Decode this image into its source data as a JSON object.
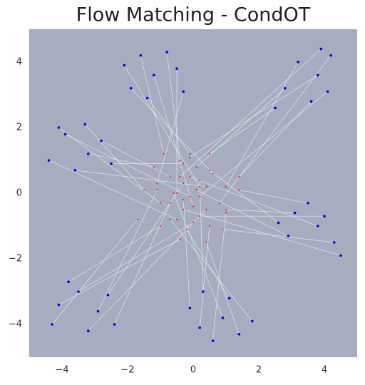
{
  "chart_data": {
    "type": "flow",
    "title": "Flow Matching - CondOT",
    "xlim": [
      -5,
      5
    ],
    "ylim": [
      -5,
      5
    ],
    "xticks": [
      {
        "value": -4,
        "label": "−4"
      },
      {
        "value": -2,
        "label": "−2"
      },
      0,
      2,
      4
    ],
    "yticks": [
      {
        "value": -4,
        "label": "−4"
      },
      {
        "value": -2,
        "label": "−2"
      },
      0,
      2,
      4
    ],
    "background": "#a5adbf",
    "trajectory_color": "#f4f4f8",
    "series": [
      {
        "color": "#ff0000",
        "x": [
          0.2,
          -0.9,
          0.0,
          -0.4,
          0.6,
          -0.5,
          -0.1,
          -1.1,
          1.0,
          -0.1,
          0.8,
          0.1,
          1.4,
          0.2,
          0.5,
          -0.4,
          1.0,
          -0.1,
          0.9,
          0.1,
          1.4,
          0.2,
          0.5,
          -0.3,
          0.5,
          -0.6,
          0.4,
          -0.3,
          1.0,
          -0.2,
          0.2,
          -0.7,
          0.0,
          -1.1,
          -0.4,
          -0.7,
          0.4,
          -1.0,
          -0.3,
          -1.7,
          -0.1,
          -1.2,
          -0.5,
          -0.7,
          0.4,
          -1.0,
          -0.3,
          -1.5
        ],
        "y": [
          0.2,
          1.2,
          -0.4,
          1.0,
          0.6,
          0.0,
          1.2,
          0.3,
          0.2,
          1.1,
          -0.3,
          0.8,
          0.5,
          -0.1,
          1.2,
          0.5,
          -0.5,
          0.5,
          -1.1,
          0.1,
          0.1,
          -0.7,
          0.7,
          -0.5,
          -1.0,
          0.0,
          -1.5,
          -0.2,
          -0.6,
          -1.1,
          0.4,
          -0.8,
          -0.9,
          0.1,
          -1.4,
          -0.3,
          -0.5,
          -1.0,
          0.3,
          -0.8,
          -0.1,
          0.8,
          -0.8,
          0.5,
          0.2,
          -0.3,
          0.9,
          0.1
        ]
      },
      {
        "color": "#0000ee",
        "x": [
          -2.1,
          -1.6,
          -1.2,
          -0.8,
          -1.9,
          -0.5,
          -1.4,
          -0.3,
          3.2,
          3.8,
          4.2,
          2.8,
          3.6,
          4.1,
          2.5,
          3.9,
          3.1,
          3.8,
          4.3,
          2.9,
          3.5,
          4.0,
          2.6,
          4.5,
          0.2,
          0.9,
          1.4,
          -0.1,
          0.6,
          1.1,
          0.3,
          1.8,
          -3.5,
          -2.9,
          -4.1,
          -2.4,
          -3.2,
          -3.8,
          -2.6,
          -4.3,
          -3.9,
          -3.2,
          -4.4,
          -2.8,
          -3.6,
          -4.1,
          -2.5,
          -3.3
        ],
        "y": [
          3.9,
          4.2,
          3.6,
          4.3,
          3.2,
          3.8,
          2.9,
          3.1,
          4.0,
          3.6,
          4.2,
          3.2,
          2.8,
          3.1,
          2.6,
          4.4,
          -0.6,
          -1.0,
          -1.5,
          -1.3,
          -0.3,
          -0.7,
          -0.9,
          -1.9,
          -4.1,
          -3.8,
          -4.3,
          -3.5,
          -4.5,
          -3.2,
          -3.0,
          -3.9,
          -3.0,
          -3.6,
          -3.4,
          -4.0,
          -4.2,
          -2.7,
          -3.1,
          -4.0,
          1.8,
          1.2,
          1.0,
          1.6,
          0.7,
          2.0,
          0.9,
          2.1
        ]
      }
    ]
  }
}
